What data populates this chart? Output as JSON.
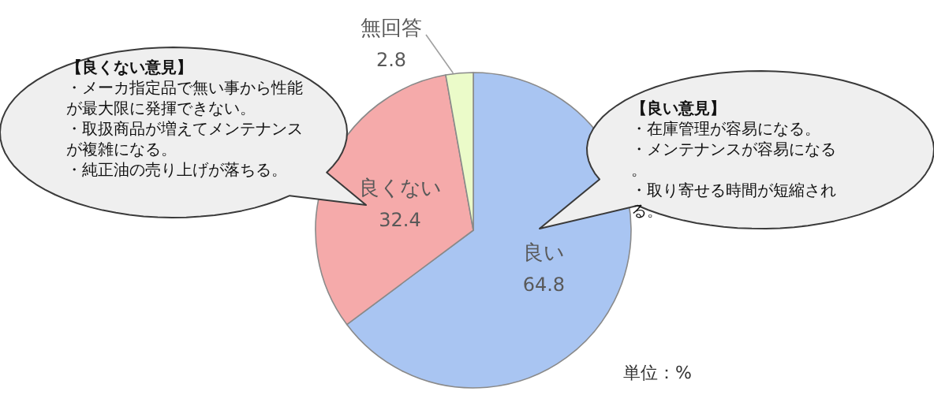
{
  "chart_data": {
    "type": "pie",
    "categories": [
      "良い",
      "良くない",
      "無回答"
    ],
    "values": [
      64.8,
      32.4,
      2.8
    ],
    "colors": [
      "#a9c5f2",
      "#f5aaaa",
      "#ebfbc9"
    ],
    "data_labels": true,
    "legend": false,
    "annotations": [
      "**【良くない意見】**・メーカ指定品で無い事から性能が最大限に発揮できない。・取扱商品が増えてメンテナンスが複雑になる。・純正油の売り上げが落ちる。",
      "**【良い意見】**・在庫管理が容易になる。・メンテナンスが容易になる。・取り寄せる時間が短縮される。",
      "単位：%"
    ]
  }
}
